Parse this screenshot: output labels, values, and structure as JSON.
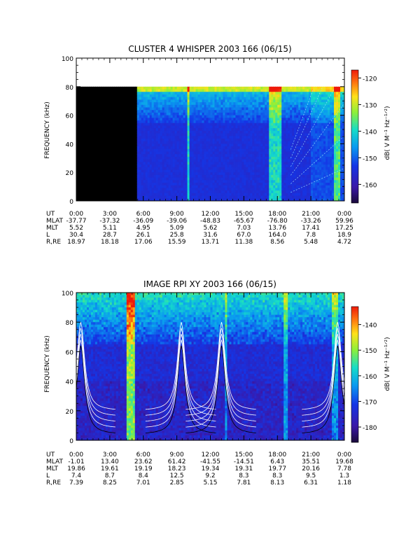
{
  "chart_data": [
    {
      "type": "heatmap",
      "title": "CLUSTER 4 WHISPER 2003 166 (06/15)",
      "ylabel": "FREQUENCY (kHz)",
      "ylim": [
        0,
        100
      ],
      "yticks": [
        "0",
        "20",
        "40",
        "60",
        "80",
        "100"
      ],
      "colorbar": {
        "label": "dB( V M⁻¹ Hz⁻¹ᐟ²)",
        "range": [
          -167,
          -117
        ],
        "ticks": [
          "-120",
          "-130",
          "-140",
          "-150",
          "-160"
        ]
      },
      "data_gap": {
        "t_start": 0.0,
        "t_end": 5.5
      },
      "data_ceiling_khz": 80,
      "ephemeris": {
        "rows": [
          {
            "label": "UT",
            "values": [
              "0:00",
              "3:00",
              "6:00",
              "9:00",
              "12:00",
              "15:00",
              "18:00",
              "21:00",
              "0:00"
            ]
          },
          {
            "label": "MLAT",
            "values": [
              "-37.77",
              "-37.32",
              "-36.09",
              "-39.06",
              "-48.83",
              "-65.67",
              "-76.80",
              "-33.26",
              "59.96"
            ]
          },
          {
            "label": "MLT",
            "values": [
              "5.52",
              "5.11",
              "4.95",
              "5.09",
              "5.62",
              "7.03",
              "13.76",
              "17.41",
              "17.25"
            ]
          },
          {
            "label": "L",
            "values": [
              "30.4",
              "28.7",
              "26.1",
              "25.8",
              "31.6",
              "67.0",
              "164.0",
              "7.8",
              "18.9"
            ]
          },
          {
            "label": "R,RE",
            "values": [
              "18.97",
              "18.18",
              "17.06",
              "15.59",
              "13.71",
              "11.38",
              "8.56",
              "5.48",
              "4.72"
            ]
          }
        ]
      }
    },
    {
      "type": "heatmap",
      "title": "IMAGE RPI XY 2003 166 (06/15)",
      "ylabel": "FREQUENCY (kHz)",
      "ylim": [
        0,
        100
      ],
      "yticks": [
        "0",
        "20",
        "40",
        "60",
        "80",
        "100"
      ],
      "colorbar": {
        "label": "dB( V M⁻¹ Hz⁻¹ᐟ²)",
        "range": [
          -186,
          -133
        ],
        "ticks": [
          "-140",
          "-150",
          "-160",
          "-170",
          "-180"
        ]
      },
      "ephemeris": {
        "rows": [
          {
            "label": "UT",
            "values": [
              "0:00",
              "3:00",
              "6:00",
              "9:00",
              "12:00",
              "15:00",
              "18:00",
              "21:00",
              "0:00"
            ]
          },
          {
            "label": "MLAT",
            "values": [
              "-1.01",
              "13.40",
              "23.62",
              "61.42",
              "-41.55",
              "-14.51",
              "6.43",
              "35.51",
              "19.68"
            ]
          },
          {
            "label": "MLT",
            "values": [
              "19.86",
              "19.61",
              "19.19",
              "18.23",
              "19.34",
              "19.31",
              "19.77",
              "20.16",
              "7.78"
            ]
          },
          {
            "label": "L",
            "values": [
              "7.4",
              "8.7",
              "8.4",
              "12.5",
              "9.2",
              "8.3",
              "8.3",
              "9.5",
              "1.3"
            ]
          },
          {
            "label": "R,RE",
            "values": [
              "7.39",
              "8.25",
              "7.01",
              "2.85",
              "5.15",
              "7.81",
              "8.13",
              "6.31",
              "1.18"
            ]
          }
        ]
      }
    }
  ]
}
